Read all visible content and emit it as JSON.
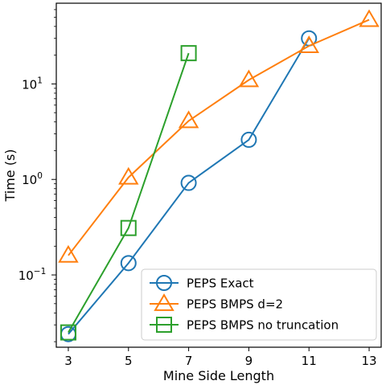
{
  "chart_data": {
    "type": "line",
    "title": "",
    "xlabel": "Mine Side Length",
    "ylabel": "Time (s)",
    "xlim": [
      2.6,
      13.4
    ],
    "ylim": [
      0.0175,
      70
    ],
    "yscale": "log",
    "grid": false,
    "legend_position": "lower-right",
    "x_ticks": [
      3,
      5,
      7,
      9,
      11,
      13
    ],
    "y_ticks": [
      {
        "value": 0.1,
        "base": "10",
        "exp": "−1"
      },
      {
        "value": 1,
        "base": "10",
        "exp": "0"
      },
      {
        "value": 10,
        "base": "10",
        "exp": "1"
      }
    ],
    "series": [
      {
        "name": "PEPS Exact",
        "color": "#1f77b4",
        "marker": "circle",
        "x": [
          3,
          5,
          7,
          9,
          11
        ],
        "y": [
          0.024,
          0.133,
          0.92,
          2.6,
          30
        ]
      },
      {
        "name": "PEPS BMPS d=2",
        "color": "#ff7f0e",
        "marker": "triangle",
        "x": [
          3,
          5,
          7,
          9,
          11,
          13
        ],
        "y": [
          0.16,
          1.05,
          4.1,
          11,
          25,
          47
        ]
      },
      {
        "name": "PEPS BMPS no truncation",
        "color": "#2ca02c",
        "marker": "square",
        "x": [
          3,
          5,
          7
        ],
        "y": [
          0.025,
          0.31,
          21
        ]
      }
    ]
  }
}
